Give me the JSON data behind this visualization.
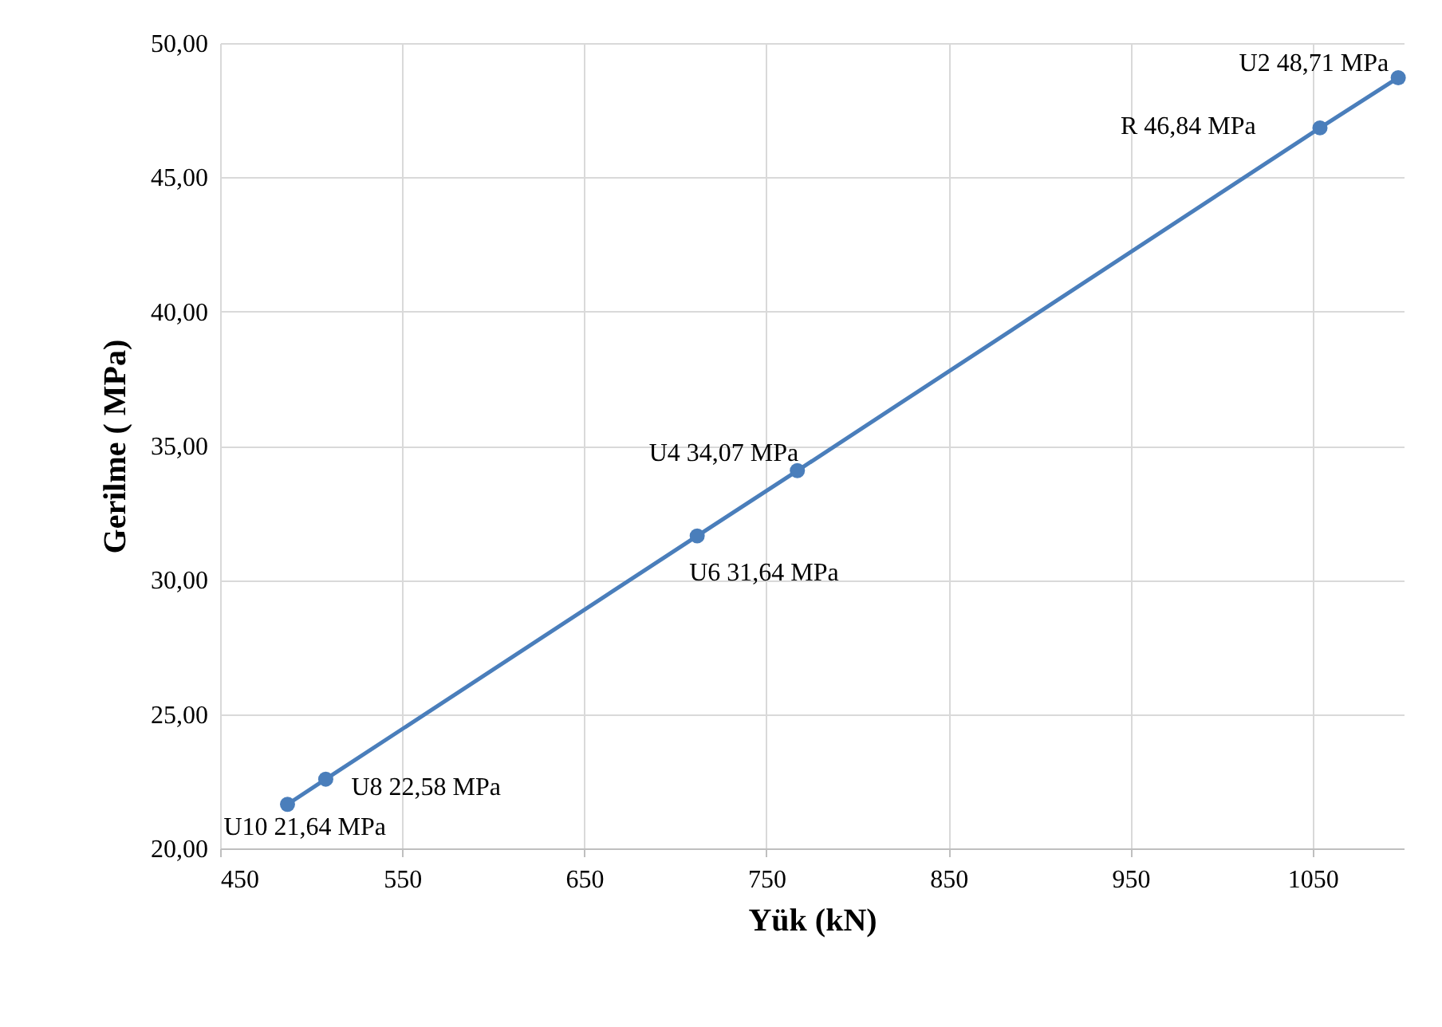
{
  "chart_data": {
    "type": "line",
    "xlabel": "Yük (kN)",
    "ylabel": "Gerilme ( MPa)",
    "x": [
      487,
      508,
      712,
      767,
      1054,
      1097
    ],
    "series": [
      {
        "color": "#4a7ebb",
        "values": [
          21.64,
          22.58,
          31.64,
          34.07,
          46.84,
          48.71
        ]
      }
    ],
    "xlim": [
      450,
      1100
    ],
    "xticks": [
      450,
      550,
      650,
      750,
      850,
      950,
      1050
    ],
    "ylim": [
      20,
      50
    ],
    "yticks": [
      {
        "value": 20,
        "label": "20,00"
      },
      {
        "value": 25,
        "label": "25,00"
      },
      {
        "value": 30,
        "label": "30,00"
      },
      {
        "value": 35,
        "label": "35,00"
      },
      {
        "value": 40,
        "label": "40,00"
      },
      {
        "value": 45,
        "label": "45,00"
      },
      {
        "value": 50,
        "label": "50,00"
      }
    ],
    "grid": true,
    "marker": "circle",
    "line_style": "solid",
    "legend": false,
    "annotations": [
      {
        "text": "U10 21,64 MPa",
        "x": 487,
        "y": 21.64
      },
      {
        "text": "U8 22,58 MPa",
        "x": 508,
        "y": 22.58
      },
      {
        "text": "U6 31,64 MPa",
        "x": 712,
        "y": 31.64
      },
      {
        "text": "U4 34,07 MPa",
        "x": 767,
        "y": 34.07
      },
      {
        "text": "R 46,84 MPa",
        "x": 1054,
        "y": 46.84
      },
      {
        "text": "U2 48,71 MPa",
        "x": 1097,
        "y": 48.71
      }
    ]
  }
}
